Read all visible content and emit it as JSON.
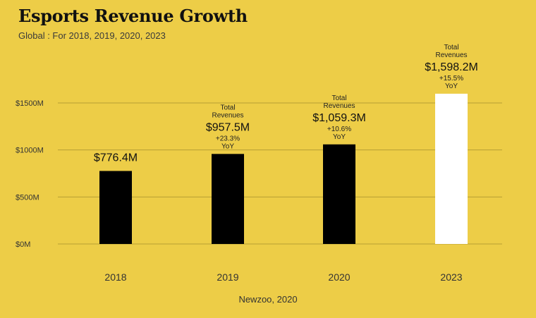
{
  "header": {
    "title": "Esports Revenue Growth",
    "subtitle": "Global : For 2018, 2019, 2020, 2023"
  },
  "source": "Newzoo, 2020",
  "colors": {
    "background": "#EDCD47",
    "bar_actual": "#000000",
    "bar_forecast": "#FFFFFF",
    "gridline": "#B69E33"
  },
  "chart_data": {
    "type": "bar",
    "title": "Esports Revenue Growth",
    "subtitle": "Global : For 2018, 2019, 2020, 2023",
    "xlabel": "",
    "ylabel": "",
    "ylim": [
      0,
      1500
    ],
    "y_ticks": [
      {
        "value": 0,
        "label": "$0M"
      },
      {
        "value": 500,
        "label": "$500M"
      },
      {
        "value": 1000,
        "label": "$1000M"
      },
      {
        "value": 1500,
        "label": "$1500M"
      }
    ],
    "grid": true,
    "categories": [
      "2018",
      "2019",
      "2020",
      "2023"
    ],
    "values": [
      776.4,
      957.5,
      1059.3,
      1598.2
    ],
    "bar_colors": [
      "#000000",
      "#000000",
      "#000000",
      "#FFFFFF"
    ],
    "data_labels": [
      "$776.4M",
      "$957.5M",
      "$1,059.3M",
      "$1,598.2M"
    ],
    "annotations": [
      {
        "category": "2018",
        "above": [],
        "below": []
      },
      {
        "category": "2019",
        "above": [
          "Total",
          "Revenues"
        ],
        "below": [
          "+23.3%",
          "YoY"
        ]
      },
      {
        "category": "2020",
        "above": [
          "Total",
          "Revenues"
        ],
        "below": [
          "+10.6%",
          "YoY"
        ]
      },
      {
        "category": "2023",
        "above": [
          "Total",
          "Revenues"
        ],
        "below": [
          "+15.5%",
          "YoY"
        ]
      }
    ]
  }
}
